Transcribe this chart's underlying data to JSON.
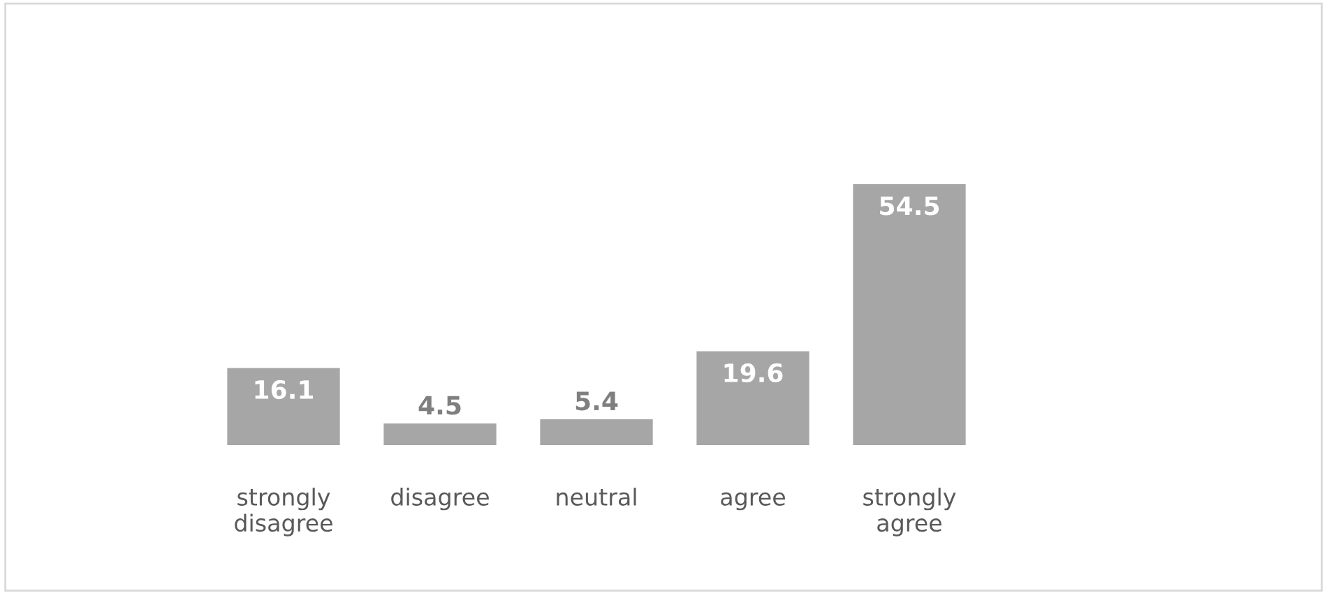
{
  "chart_data": {
    "type": "bar",
    "categories": [
      "strongly disagree",
      "disagree",
      "neutral",
      "agree",
      "strongly agree"
    ],
    "values": [
      16.1,
      4.5,
      5.4,
      19.6,
      54.5
    ],
    "color": "#a6a6a6",
    "data_labels": true
  }
}
